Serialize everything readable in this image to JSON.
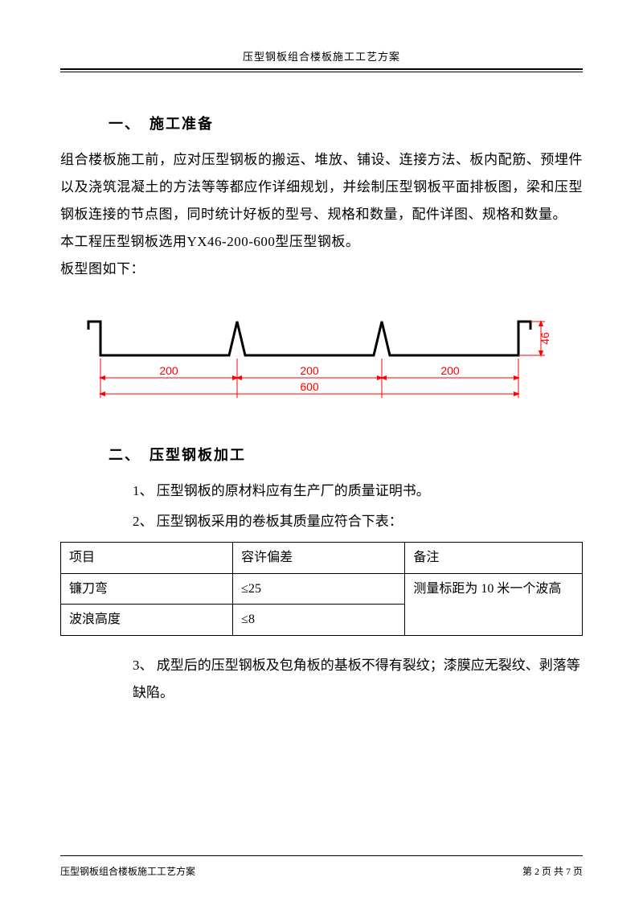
{
  "header": {
    "title": "压型钢板组合楼板施工工艺方案"
  },
  "section1": {
    "heading": "一、　施工准备",
    "para1": "组合楼板施工前，应对压型钢板的搬运、堆放、铺设、连接方法、板内配筋、预埋件以及浇筑混凝土的方法等等都应作详细规划，并绘制压型钢板平面排板图，梁和压型钢板连接的节点图，同时统计好板的型号、规格和数量，配件详图、规格和数量。",
    "para2": "本工程压型钢板选用YX46-200-600型压型钢板。",
    "para3": "板型图如下："
  },
  "diagram": {
    "profile_stroke": "#000000",
    "profile_stroke_width": 3,
    "dim_color": "#ff0000",
    "dim_font_size": 14,
    "seg_labels": [
      "200",
      "200",
      "200"
    ],
    "total_label": "600",
    "height_label": "46",
    "total_width": 540,
    "seg_width": 180,
    "profile_height": 42,
    "left_margin": 20
  },
  "section2": {
    "heading": "二、　压型钢板加工",
    "item1": "1、 压型钢板的原材料应有生产厂的质量证明书。",
    "item2": "2、 压型钢板采用的卷板其质量应符合下表：",
    "item3": "3、 成型后的压型钢板及包角板的基板不得有裂纹；漆膜应无裂纹、剥落等缺陷。"
  },
  "table": {
    "col_widths": [
      "33%",
      "33%",
      "34%"
    ],
    "headers": [
      "项目",
      "容许偏差",
      "备注"
    ],
    "row1": [
      "镰刀弯",
      "≤25"
    ],
    "row2": [
      "波浪高度",
      "≤8"
    ],
    "note": "测量标距为 10 米一个波高"
  },
  "footer": {
    "left": "压型钢板组合楼板施工工艺方案",
    "right": "第 2 页 共 7 页"
  }
}
